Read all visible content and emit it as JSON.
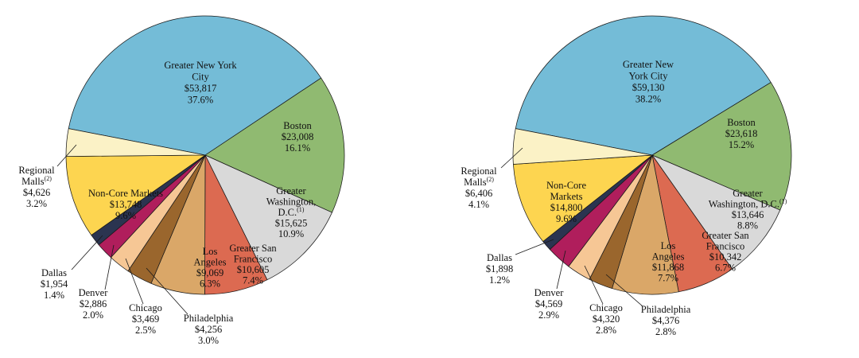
{
  "figure": {
    "background_color": "#ffffff",
    "outline_color": "#1a1a1a"
  },
  "chart_data": [
    {
      "id": "left",
      "type": "pie",
      "title": "",
      "start_angle_deg": 281,
      "direction": "clockwise",
      "slices": [
        {
          "id": "nyc",
          "label": "Greater New York City",
          "value": 53817,
          "display_value": "$53,817",
          "pct": 37.6,
          "display_pct": "37.6%",
          "color": "#74bcd7",
          "placement": "inside",
          "label_lines": [
            "Greater New York",
            "City",
            "$53,817",
            "37.6%"
          ]
        },
        {
          "id": "boston",
          "label": "Boston",
          "value": 23008,
          "display_value": "$23,008",
          "pct": 16.1,
          "display_pct": "16.1%",
          "color": "#90ba71",
          "placement": "inside",
          "label_lines": [
            "Boston",
            "$23,008",
            "16.1%"
          ]
        },
        {
          "id": "dc",
          "label": "Greater Washington, D.C.",
          "value": 15625,
          "display_value": "$15,625",
          "pct": 10.9,
          "display_pct": "10.9%",
          "color": "#d9d9d9",
          "placement": "inside",
          "label_lines": [
            "Greater",
            "Washington,",
            "D.C.^(1)",
            "$15,625",
            "10.9%"
          ]
        },
        {
          "id": "sf",
          "label": "Greater San Francisco",
          "value": 10605,
          "display_value": "$10,605",
          "pct": 7.4,
          "display_pct": "7.4%",
          "color": "#dc6a51",
          "placement": "inside",
          "label_lines": [
            "Greater San",
            "Francisco",
            "$10,605",
            "7.4%"
          ]
        },
        {
          "id": "la",
          "label": "Los Angeles",
          "value": 9069,
          "display_value": "$9,069",
          "pct": 6.3,
          "display_pct": "6.3%",
          "color": "#daa768",
          "placement": "inside",
          "label_lines": [
            "Los",
            "Angeles",
            "$9,069",
            "6.3%"
          ]
        },
        {
          "id": "philly",
          "label": "Philadelphia",
          "value": 4256,
          "display_value": "$4,256",
          "pct": 3.0,
          "display_pct": "3.0%",
          "color": "#9a662d",
          "placement": "outside",
          "label_lines": [
            "Philadelphia",
            "$4,256",
            "3.0%"
          ]
        },
        {
          "id": "chicago",
          "label": "Chicago",
          "value": 3469,
          "display_value": "$3,469",
          "pct": 2.5,
          "display_pct": "2.5%",
          "color": "#f6c795",
          "placement": "outside",
          "label_lines": [
            "Chicago",
            "$3,469",
            "2.5%"
          ]
        },
        {
          "id": "denver",
          "label": "Denver",
          "value": 2886,
          "display_value": "$2,886",
          "pct": 2.0,
          "display_pct": "2.0%",
          "color": "#b01e5c",
          "placement": "outside",
          "label_lines": [
            "Denver",
            "$2,886",
            "2.0%"
          ]
        },
        {
          "id": "dallas",
          "label": "Dallas",
          "value": 1954,
          "display_value": "$1,954",
          "pct": 1.4,
          "display_pct": "1.4%",
          "color": "#2b3450",
          "placement": "outside",
          "label_lines": [
            "Dallas",
            "$1,954",
            "1.4%"
          ]
        },
        {
          "id": "noncore",
          "label": "Non-Core Markets",
          "value": 13748,
          "display_value": "$13,748",
          "pct": 9.6,
          "display_pct": "9.6%",
          "color": "#fdd550",
          "placement": "inside",
          "label_lines": [
            "Non-Core Markets",
            "$13,748",
            "9.6%"
          ]
        },
        {
          "id": "malls",
          "label": "Regional Malls",
          "value": 4626,
          "display_value": "$4,626",
          "pct": 3.2,
          "display_pct": "3.2%",
          "color": "#fbf2c6",
          "placement": "outside",
          "label_lines": [
            "Regional",
            "Malls^(2)",
            "$4,626",
            "3.2%"
          ]
        }
      ]
    },
    {
      "id": "right",
      "type": "pie",
      "title": "",
      "start_angle_deg": 281,
      "direction": "clockwise",
      "slices": [
        {
          "id": "nyc",
          "label": "Greater New York City",
          "value": 59130,
          "display_value": "$59,130",
          "pct": 38.2,
          "display_pct": "38.2%",
          "color": "#74bcd7",
          "placement": "inside",
          "label_lines": [
            "Greater New",
            "York City",
            "$59,130",
            "38.2%"
          ]
        },
        {
          "id": "boston",
          "label": "Boston",
          "value": 23618,
          "display_value": "$23,618",
          "pct": 15.2,
          "display_pct": "15.2%",
          "color": "#90ba71",
          "placement": "inside",
          "label_lines": [
            "Boston",
            "$23,618",
            "15.2%"
          ]
        },
        {
          "id": "dc",
          "label": "Greater Washington, D.C.",
          "value": 13646,
          "display_value": "$13,646",
          "pct": 8.8,
          "display_pct": "8.8%",
          "color": "#d9d9d9",
          "placement": "inside",
          "label_lines": [
            "Greater",
            "Washington, D.C.^(1)",
            "$13,646",
            "8.8%"
          ]
        },
        {
          "id": "sf",
          "label": "Greater San Francisco",
          "value": 10342,
          "display_value": "$10,342",
          "pct": 6.7,
          "display_pct": "6.7%",
          "color": "#dc6a51",
          "placement": "inside",
          "label_lines": [
            "Greater San",
            "Francisco",
            "$10,342",
            "6.7%"
          ]
        },
        {
          "id": "la",
          "label": "Los Angeles",
          "value": 11868,
          "display_value": "$11,868",
          "pct": 7.7,
          "display_pct": "7.7%",
          "color": "#daa768",
          "placement": "inside",
          "label_lines": [
            "Los",
            "Angeles",
            "$11,868",
            "7.7%"
          ]
        },
        {
          "id": "philly",
          "label": "Philadelphia",
          "value": 4376,
          "display_value": "$4,376",
          "pct": 2.8,
          "display_pct": "2.8%",
          "color": "#9a662d",
          "placement": "outside",
          "label_lines": [
            "Philadelphia",
            "$4,376",
            "2.8%"
          ]
        },
        {
          "id": "chicago",
          "label": "Chicago",
          "value": 4320,
          "display_value": "$4,320",
          "pct": 2.8,
          "display_pct": "2.8%",
          "color": "#f6c795",
          "placement": "outside",
          "label_lines": [
            "Chicago",
            "$4,320",
            "2.8%"
          ]
        },
        {
          "id": "denver",
          "label": "Denver",
          "value": 4569,
          "display_value": "$4,569",
          "pct": 2.9,
          "display_pct": "2.9%",
          "color": "#b01e5c",
          "placement": "outside",
          "label_lines": [
            "Denver",
            "$4,569",
            "2.9%"
          ]
        },
        {
          "id": "dallas",
          "label": "Dallas",
          "value": 1898,
          "display_value": "$1,898",
          "pct": 1.2,
          "display_pct": "1.2%",
          "color": "#2b3450",
          "placement": "outside",
          "label_lines": [
            "Dallas",
            "$1,898",
            "1.2%"
          ]
        },
        {
          "id": "noncore",
          "label": "Non-Core Markets",
          "value": 14800,
          "display_value": "$14,800",
          "pct": 9.6,
          "display_pct": "9.6%",
          "color": "#fdd550",
          "placement": "inside",
          "label_lines": [
            "Non-Core",
            "Markets",
            "$14,800",
            "9.6%"
          ]
        },
        {
          "id": "malls",
          "label": "Regional Malls",
          "value": 6406,
          "display_value": "$6,406",
          "pct": 4.1,
          "display_pct": "4.1%",
          "color": "#fbf2c6",
          "placement": "outside",
          "label_lines": [
            "Regional",
            "Malls^(2)",
            "$6,406",
            "4.1%"
          ]
        }
      ]
    }
  ]
}
